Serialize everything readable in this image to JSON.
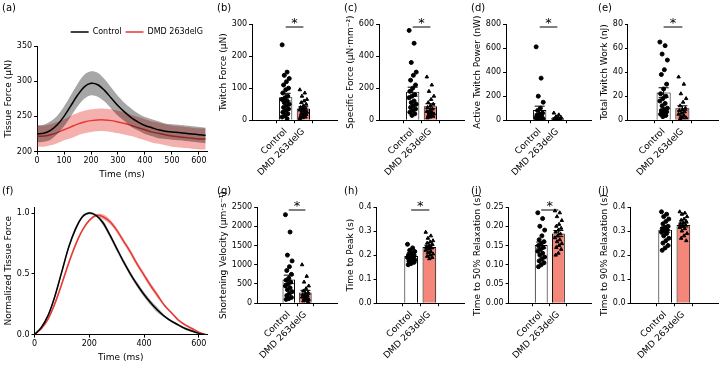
{
  "chart_data": [
    {
      "type": "line",
      "panel_label": "(a)",
      "x_label": "Time (ms)",
      "y_label": "Tissue Force (µN)",
      "x": [
        0,
        25,
        50,
        75,
        100,
        125,
        150,
        175,
        200,
        225,
        250,
        275,
        300,
        325,
        350,
        375,
        400,
        425,
        450,
        475,
        500,
        525,
        550,
        575,
        600,
        625
      ],
      "series": [
        {
          "name": "Control",
          "color": "#000000",
          "values": [
            225,
            226,
            230,
            238,
            250,
            265,
            280,
            292,
            297,
            295,
            287,
            276,
            265,
            256,
            248,
            242,
            237,
            234,
            231,
            229,
            228,
            227,
            226,
            225,
            224,
            223
          ],
          "error": [
            12,
            12,
            13,
            13,
            14,
            15,
            16,
            17,
            17,
            17,
            16,
            15,
            14,
            13,
            13,
            12,
            12,
            12,
            12,
            11,
            11,
            11,
            11,
            11,
            11,
            11
          ]
        },
        {
          "name": "DMD 263delG",
          "color": "#e53935",
          "values": [
            222,
            222,
            224,
            227,
            231,
            235,
            239,
            242,
            244,
            245,
            245,
            244,
            242,
            240,
            237,
            234,
            231,
            228,
            226,
            224,
            222,
            221,
            220,
            219,
            218,
            218
          ],
          "error": [
            15,
            15,
            15,
            15,
            15,
            16,
            16,
            16,
            16,
            16,
            16,
            16,
            16,
            16,
            15,
            15,
            15,
            15,
            15,
            15,
            15,
            15,
            15,
            15,
            15,
            15
          ]
        }
      ],
      "xlim": [
        0,
        630
      ],
      "xticks": [
        0,
        100,
        200,
        300,
        400,
        500,
        600
      ],
      "ylim": [
        200,
        350
      ],
      "yticks": [
        200,
        250,
        300,
        350
      ],
      "grid": false,
      "legend": "upper right"
    },
    {
      "type": "bar",
      "panel_label": "(b)",
      "y_label": "Twitch Force (µN)",
      "categories": [
        "Control",
        "DMD 263delG"
      ],
      "values": [
        72,
        37
      ],
      "errors": [
        12,
        5
      ],
      "colors": [
        "#ffffff",
        "#f4877a"
      ],
      "points": [
        [
          235,
          150,
          140,
          130,
          120,
          110,
          100,
          95,
          85,
          75,
          70,
          65,
          60,
          55,
          50,
          45,
          40,
          35,
          30,
          25,
          20,
          15,
          10,
          5
        ],
        [
          95,
          85,
          75,
          65,
          60,
          55,
          50,
          45,
          40,
          38,
          35,
          32,
          30,
          28,
          25,
          22,
          20,
          18,
          15,
          12,
          10,
          8,
          5
        ]
      ],
      "ylim": [
        0,
        300
      ],
      "yticks": [
        0,
        100,
        200,
        300
      ],
      "grid": false,
      "significance": "*"
    },
    {
      "type": "bar",
      "panel_label": "(c)",
      "y_label": "Specific Force (µN·mm⁻²)",
      "categories": [
        "Control",
        "DMD 263delG"
      ],
      "values": [
        178,
        88
      ],
      "errors": [
        28,
        15
      ],
      "colors": [
        "#ffffff",
        "#f4877a"
      ],
      "points": [
        [
          560,
          480,
          360,
          300,
          280,
          250,
          220,
          200,
          180,
          160,
          150,
          140,
          120,
          110,
          100,
          90,
          80,
          70,
          60,
          50,
          40,
          30
        ],
        [
          270,
          220,
          180,
          150,
          130,
          110,
          100,
          90,
          80,
          70,
          60,
          55,
          50,
          45,
          40,
          35,
          30,
          25,
          20,
          15
        ]
      ],
      "ylim": [
        0,
        600
      ],
      "yticks": [
        0,
        200,
        400,
        600
      ],
      "grid": false,
      "significance": "*"
    },
    {
      "type": "bar",
      "panel_label": "(d)",
      "y_label": "Active Twitch Power (nW)",
      "categories": [
        "Control",
        "DMD 263delG"
      ],
      "values": [
        85,
        16
      ],
      "errors": [
        32,
        5
      ],
      "colors": [
        "#ffffff",
        "#f4877a"
      ],
      "points": [
        [
          610,
          350,
          200,
          150,
          100,
          80,
          60,
          50,
          40,
          30,
          25,
          20,
          15,
          12,
          10,
          8,
          6,
          5,
          4,
          3
        ],
        [
          60,
          45,
          30,
          25,
          20,
          15,
          12,
          10,
          8,
          6,
          5,
          4,
          3,
          2,
          2,
          1
        ]
      ],
      "ylim": [
        0,
        800
      ],
      "yticks": [
        0,
        200,
        400,
        600,
        800
      ],
      "grid": false,
      "significance": "*"
    },
    {
      "type": "bar",
      "panel_label": "(e)",
      "y_label": "Total Twitch Work (nJ)",
      "categories": [
        "Control",
        "DMD 263delG"
      ],
      "values": [
        23,
        10
      ],
      "errors": [
        4,
        2
      ],
      "colors": [
        "#ffffff",
        "#f4877a"
      ],
      "points": [
        [
          65,
          62,
          55,
          50,
          42,
          38,
          30,
          26,
          22,
          20,
          18,
          16,
          14,
          12,
          10,
          9,
          8,
          7,
          6,
          5,
          4,
          3
        ],
        [
          36,
          30,
          22,
          18,
          15,
          12,
          10,
          9,
          8,
          7,
          6,
          5,
          4,
          3,
          2,
          2,
          1
        ]
      ],
      "ylim": [
        0,
        80
      ],
      "yticks": [
        0,
        20,
        40,
        60,
        80
      ],
      "grid": false,
      "significance": "*"
    },
    {
      "type": "line",
      "panel_label": "(f)",
      "x_label": "Time (ms)",
      "y_label": "Normalized Tissue Force",
      "x": [
        0,
        25,
        50,
        75,
        100,
        125,
        150,
        175,
        200,
        225,
        250,
        275,
        300,
        325,
        350,
        375,
        400,
        425,
        450,
        475,
        500,
        525,
        550,
        575,
        600,
        625
      ],
      "series": [
        {
          "name": "Control",
          "color": "#000000",
          "values": [
            0,
            0.06,
            0.16,
            0.32,
            0.52,
            0.72,
            0.87,
            0.97,
            1.0,
            0.98,
            0.92,
            0.82,
            0.71,
            0.6,
            0.5,
            0.41,
            0.33,
            0.26,
            0.2,
            0.15,
            0.11,
            0.08,
            0.05,
            0.03,
            0.01,
            0
          ],
          "error": [
            0,
            0.01,
            0.01,
            0.02,
            0.02,
            0.02,
            0.02,
            0.01,
            0.01,
            0.01,
            0.02,
            0.02,
            0.02,
            0.02,
            0.02,
            0.02,
            0.02,
            0.02,
            0.02,
            0.01,
            0.01,
            0.01,
            0.01,
            0.01,
            0,
            0
          ]
        },
        {
          "name": "DMD 263delG",
          "color": "#e53935",
          "values": [
            0,
            0.05,
            0.13,
            0.26,
            0.42,
            0.59,
            0.74,
            0.86,
            0.94,
            0.98,
            0.97,
            0.93,
            0.86,
            0.77,
            0.68,
            0.58,
            0.49,
            0.4,
            0.32,
            0.24,
            0.18,
            0.12,
            0.08,
            0.05,
            0.02,
            0
          ],
          "error": [
            0,
            0.01,
            0.01,
            0.02,
            0.02,
            0.02,
            0.02,
            0.01,
            0.01,
            0.01,
            0.02,
            0.02,
            0.02,
            0.02,
            0.02,
            0.02,
            0.02,
            0.02,
            0.02,
            0.01,
            0.01,
            0.01,
            0.01,
            0.01,
            0,
            0
          ]
        }
      ],
      "xlim": [
        0,
        630
      ],
      "xticks": [
        0,
        200,
        400,
        600
      ],
      "ylim": [
        0,
        1.05
      ],
      "yticks": [
        {
          "value": 0,
          "label": "0.0"
        },
        0.5,
        {
          "value": 1,
          "label": "1.0"
        }
      ],
      "grid": false
    },
    {
      "type": "bar",
      "panel_label": "(g)",
      "y_label": "Shortening Velocity (µm·s⁻¹)",
      "categories": [
        "Control",
        "DMD 263delG"
      ],
      "values": [
        620,
        280
      ],
      "errors": [
        110,
        55
      ],
      "colors": [
        "#ffffff",
        "#f4877a"
      ],
      "points": [
        [
          2300,
          1850,
          1250,
          1100,
          950,
          850,
          750,
          650,
          600,
          550,
          500,
          450,
          400,
          350,
          300,
          250,
          200,
          150,
          120,
          100
        ],
        [
          1000,
          700,
          550,
          450,
          380,
          320,
          280,
          250,
          220,
          200,
          180,
          160,
          140,
          120,
          100,
          80,
          60,
          40
        ]
      ],
      "ylim": [
        0,
        2500
      ],
      "yticks": [
        0,
        500,
        1000,
        1500,
        2000,
        2500
      ],
      "grid": false,
      "significance": "*"
    },
    {
      "type": "bar",
      "panel_label": "(h)",
      "y_label": "Time to Peak (s)",
      "categories": [
        "Control",
        "DMD 263delG"
      ],
      "values": [
        0.196,
        0.234
      ],
      "errors": [
        0.005,
        0.007
      ],
      "colors": [
        "#ffffff",
        "#f4877a"
      ],
      "points": [
        [
          0.245,
          0.23,
          0.22,
          0.215,
          0.21,
          0.205,
          0.2,
          0.2,
          0.195,
          0.195,
          0.19,
          0.19,
          0.185,
          0.185,
          0.18,
          0.18,
          0.175,
          0.17,
          0.165,
          0.16
        ],
        [
          0.295,
          0.28,
          0.27,
          0.26,
          0.255,
          0.25,
          0.245,
          0.24,
          0.235,
          0.23,
          0.225,
          0.22,
          0.215,
          0.21,
          0.205,
          0.2,
          0.195,
          0.19,
          0.185
        ]
      ],
      "ylim": [
        0,
        0.4
      ],
      "yticks": [
        {
          "value": 0,
          "label": "0.0"
        },
        0.1,
        0.2,
        0.3,
        0.4
      ],
      "grid": false,
      "significance": "*"
    },
    {
      "type": "bar",
      "panel_label": "(i)",
      "y_label": "Time to 50% Relaxation (s)",
      "categories": [
        "Control",
        "DMD 263delG"
      ],
      "values": [
        0.151,
        0.181
      ],
      "errors": [
        0.008,
        0.008
      ],
      "colors": [
        "#ffffff",
        "#f4877a"
      ],
      "points": [
        [
          0.235,
          0.22,
          0.2,
          0.19,
          0.175,
          0.165,
          0.16,
          0.155,
          0.15,
          0.145,
          0.14,
          0.135,
          0.13,
          0.125,
          0.12,
          0.115,
          0.11,
          0.105,
          0.1,
          0.095
        ],
        [
          0.24,
          0.235,
          0.225,
          0.215,
          0.205,
          0.2,
          0.195,
          0.19,
          0.185,
          0.18,
          0.175,
          0.17,
          0.165,
          0.16,
          0.155,
          0.15,
          0.145,
          0.14,
          0.13,
          0.125
        ]
      ],
      "ylim": [
        0,
        0.25
      ],
      "yticks": [
        {
          "value": 0,
          "label": "0.00"
        },
        0.05,
        {
          "value": 0.1,
          "label": "0.10"
        },
        0.15,
        {
          "value": 0.2,
          "label": "0.20"
        },
        0.25
      ],
      "grid": false,
      "significance": "*"
    },
    {
      "type": "bar",
      "panel_label": "(j)",
      "y_label": "Time to 90% Relaxation (s)",
      "categories": [
        "Control",
        "DMD 263delG"
      ],
      "values": [
        0.305,
        0.325
      ],
      "errors": [
        0.01,
        0.008
      ],
      "colors": [
        "#ffffff",
        "#f4877a"
      ],
      "points": [
        [
          0.38,
          0.37,
          0.36,
          0.35,
          0.34,
          0.33,
          0.32,
          0.315,
          0.31,
          0.305,
          0.3,
          0.295,
          0.29,
          0.28,
          0.27,
          0.26,
          0.25,
          0.24,
          0.23,
          0.22
        ],
        [
          0.38,
          0.375,
          0.37,
          0.36,
          0.35,
          0.345,
          0.34,
          0.335,
          0.33,
          0.325,
          0.32,
          0.315,
          0.31,
          0.3,
          0.29,
          0.28,
          0.27,
          0.26
        ]
      ],
      "ylim": [
        0,
        0.4
      ],
      "yticks": [
        {
          "value": 0,
          "label": "0.0"
        },
        0.1,
        0.2,
        0.3,
        0.4
      ],
      "grid": false
    }
  ]
}
